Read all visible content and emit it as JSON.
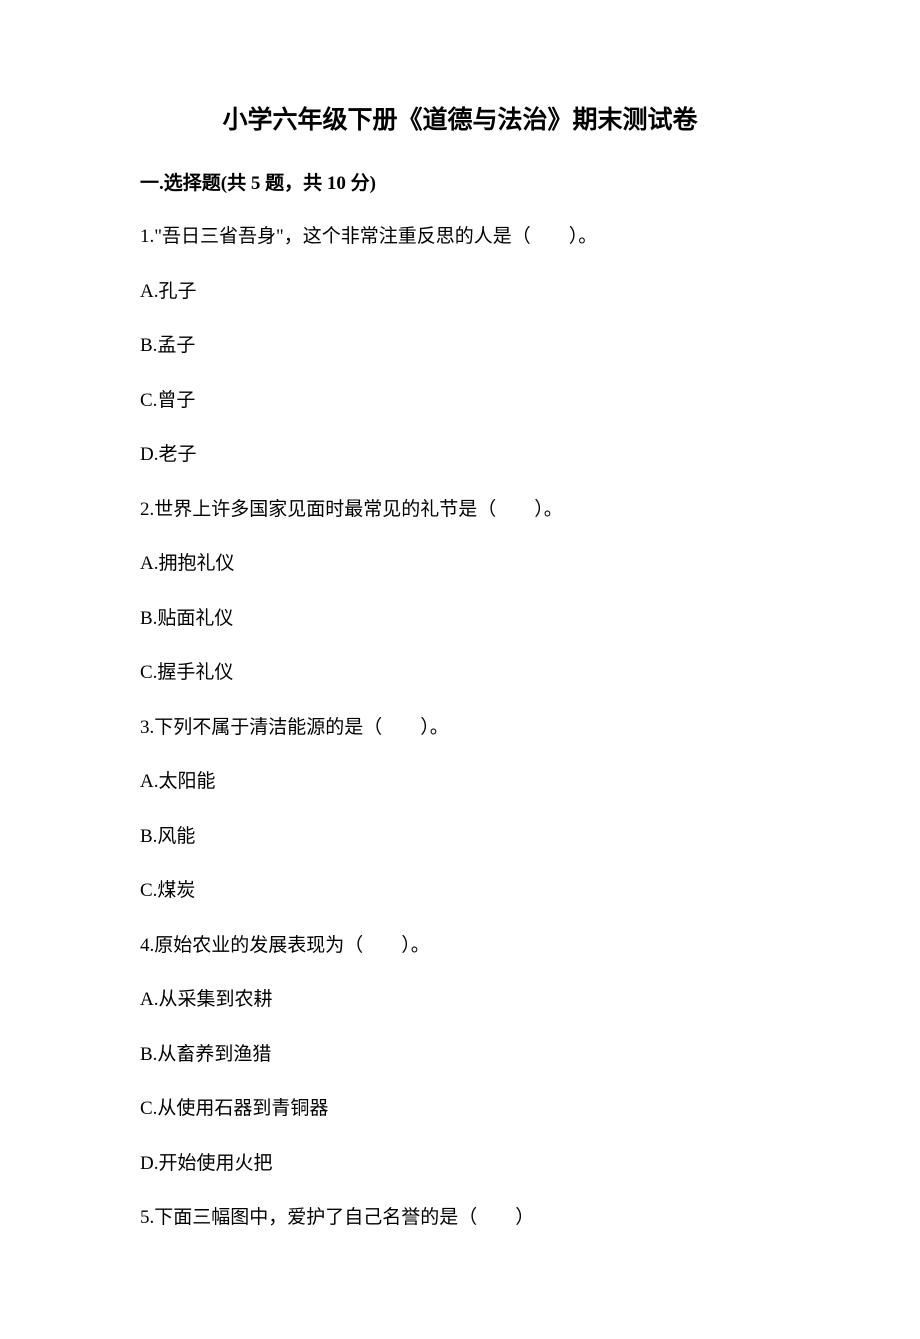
{
  "title": "小学六年级下册《道德与法治》期末测试卷",
  "section": {
    "header": "一.选择题(共 5 题，共 10 分)"
  },
  "questions": [
    {
      "text": "1.\"吾日三省吾身\"，这个非常注重反思的人是（　　）。",
      "options": [
        "A.孔子",
        "B.孟子",
        "C.曾子",
        "D.老子"
      ]
    },
    {
      "text": "2.世界上许多国家见面时最常见的礼节是（　　）。",
      "options": [
        "A.拥抱礼仪",
        "B.贴面礼仪",
        "C.握手礼仪"
      ]
    },
    {
      "text": "3.下列不属于清洁能源的是（　　）。",
      "options": [
        "A.太阳能",
        "B.风能",
        "C.煤炭"
      ]
    },
    {
      "text": "4.原始农业的发展表现为（　　）。",
      "options": [
        "A.从采集到农耕",
        "B.从畜养到渔猎",
        "C.从使用石器到青铜器",
        "D.开始使用火把"
      ]
    },
    {
      "text": "5.下面三幅图中，爱护了自己名誉的是（　　）",
      "options": []
    }
  ]
}
